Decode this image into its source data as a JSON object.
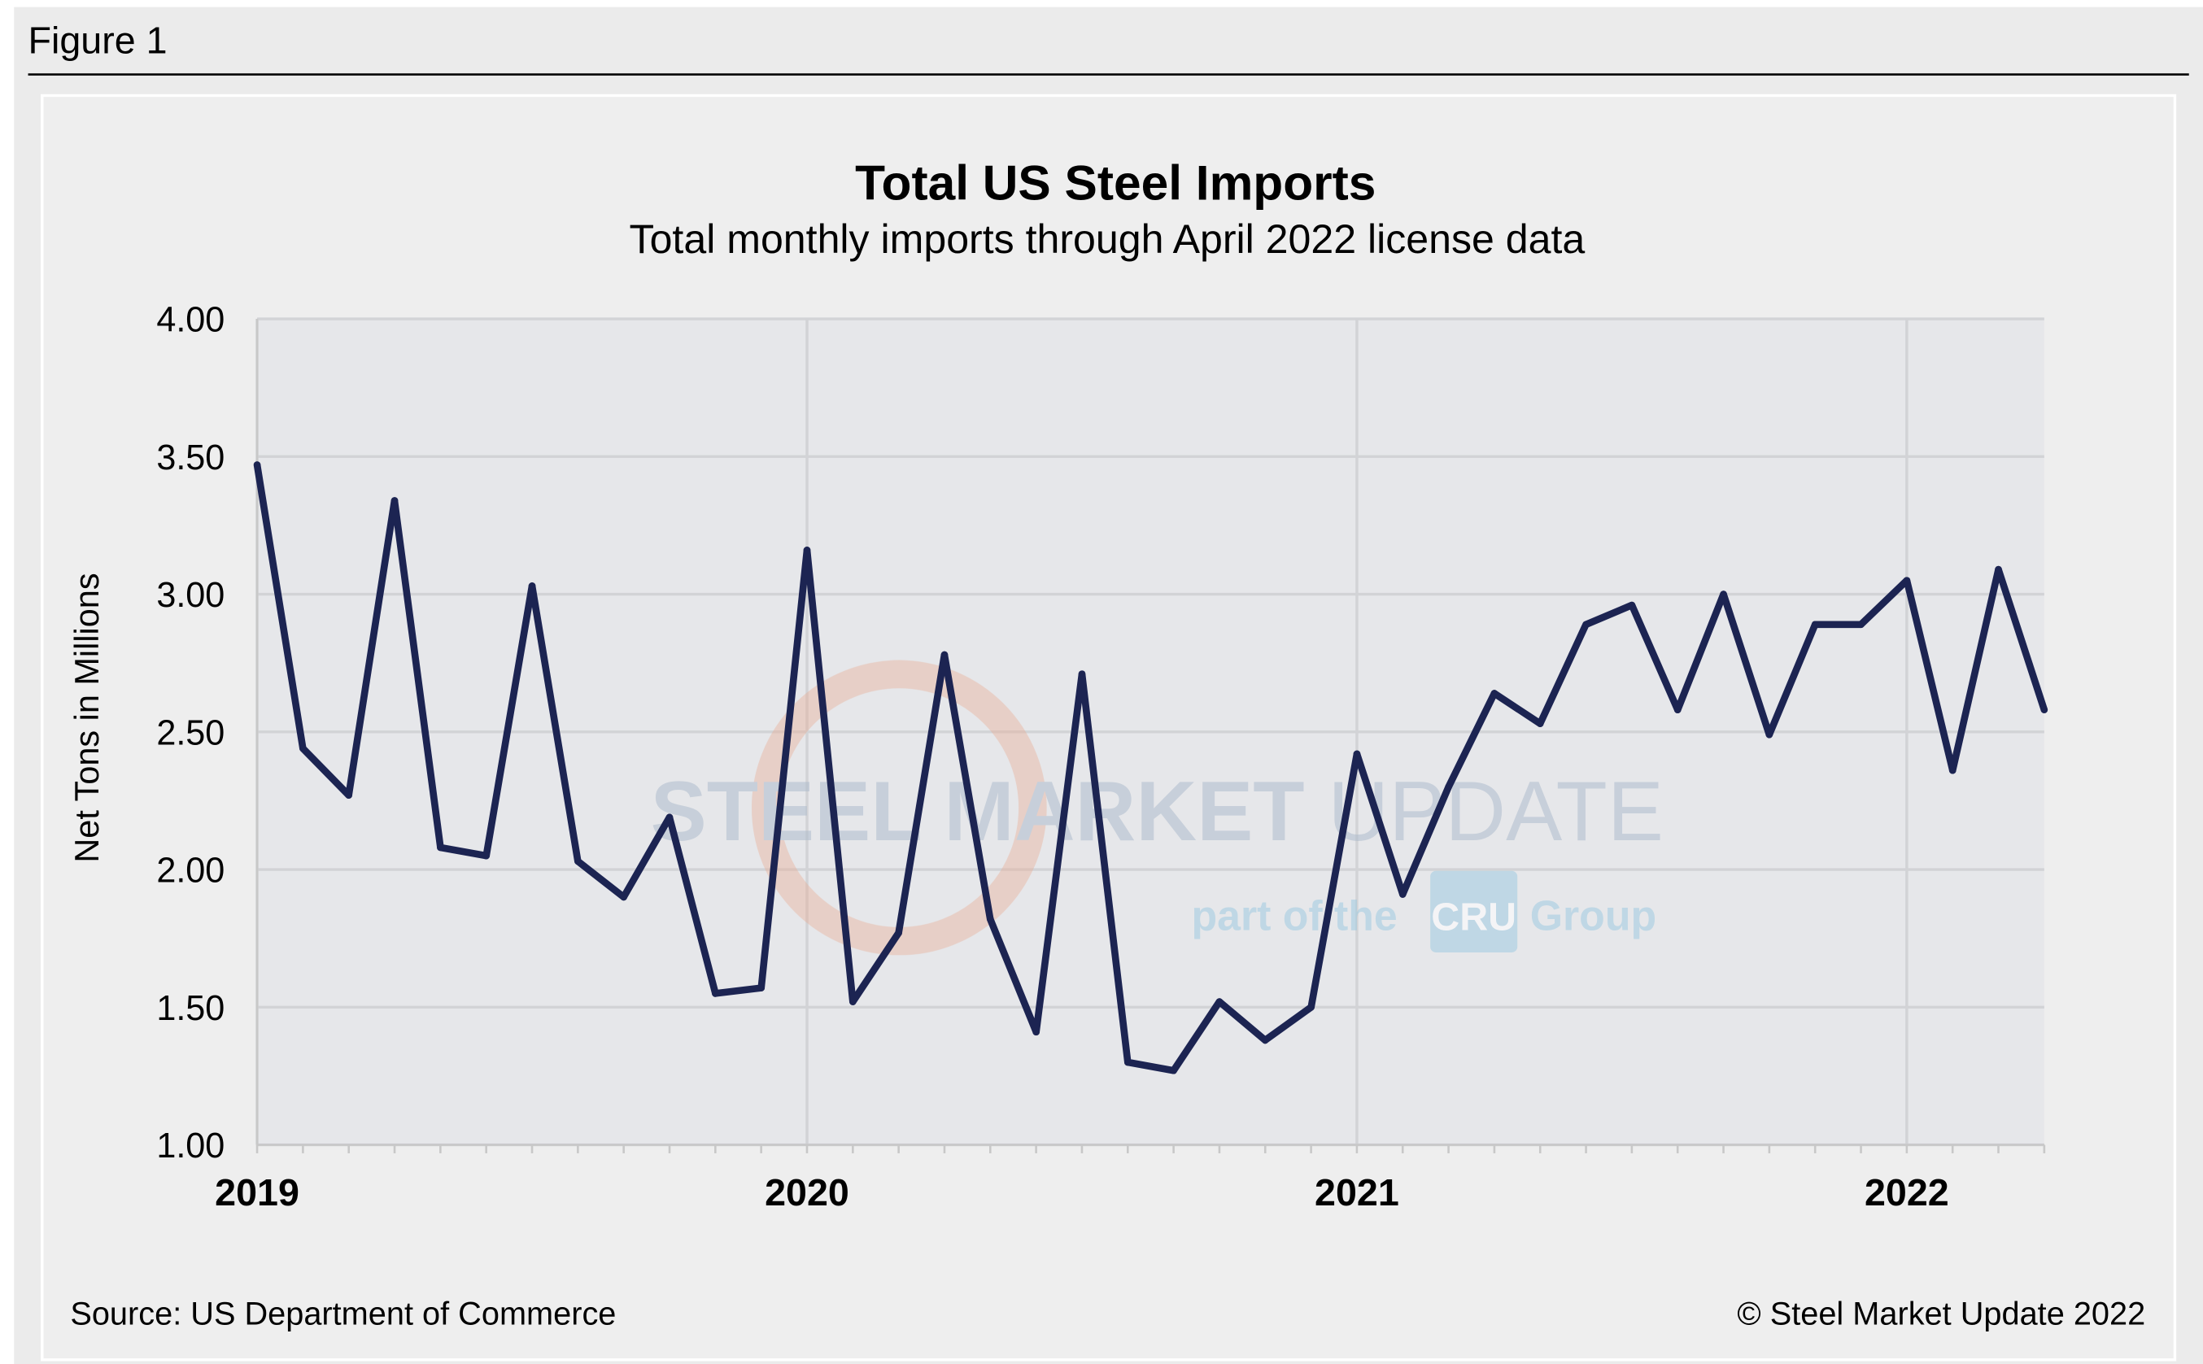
{
  "figure_label": "Figure 1",
  "source": "Source: US Department of Commerce",
  "copyright": "© Steel Market Update 2022",
  "watermark": {
    "line1a": "STEEL MARKET",
    "line1b": " UPDATE",
    "line2a": "part of the",
    "badge": "CRU",
    "line2b": "Group"
  },
  "colors": {
    "line": "#1c2452",
    "plot_bg": "#e6e7ea",
    "panel_bg": "#eeeeee",
    "grid": "#d2d3d6"
  },
  "chart_data": {
    "type": "line",
    "title": "Total US Steel Imports",
    "subtitle": "Total monthly imports through April 2022 license data",
    "ylabel": "Net Tons in Millions",
    "xlabel": "",
    "ylim": [
      1.0,
      4.0
    ],
    "yticks": [
      "1.00",
      "1.50",
      "2.00",
      "2.50",
      "3.00",
      "3.50",
      "4.00"
    ],
    "xtick_labels": [
      "2019",
      "2020",
      "2021",
      "2022"
    ],
    "grid": true,
    "x_start": "2019-01",
    "x_end": "2022-04",
    "x": [
      "2019-01",
      "2019-02",
      "2019-03",
      "2019-04",
      "2019-05",
      "2019-06",
      "2019-07",
      "2019-08",
      "2019-09",
      "2019-10",
      "2019-11",
      "2019-12",
      "2020-01",
      "2020-02",
      "2020-03",
      "2020-04",
      "2020-05",
      "2020-06",
      "2020-07",
      "2020-08",
      "2020-09",
      "2020-10",
      "2020-11",
      "2020-12",
      "2021-01",
      "2021-02",
      "2021-03",
      "2021-04",
      "2021-05",
      "2021-06",
      "2021-07",
      "2021-08",
      "2021-09",
      "2021-10",
      "2021-11",
      "2021-12",
      "2022-01",
      "2022-02",
      "2022-03",
      "2022-04"
    ],
    "values": [
      3.47,
      2.44,
      2.27,
      3.34,
      2.08,
      2.05,
      3.03,
      2.03,
      1.9,
      2.19,
      1.55,
      1.57,
      3.16,
      1.52,
      1.77,
      2.78,
      1.82,
      1.41,
      2.71,
      1.3,
      1.27,
      1.52,
      1.38,
      1.5,
      2.42,
      1.91,
      2.3,
      2.64,
      2.53,
      2.89,
      2.96,
      2.58,
      3.0,
      2.49,
      2.89,
      2.89,
      3.05,
      2.36,
      3.09,
      2.58
    ]
  }
}
